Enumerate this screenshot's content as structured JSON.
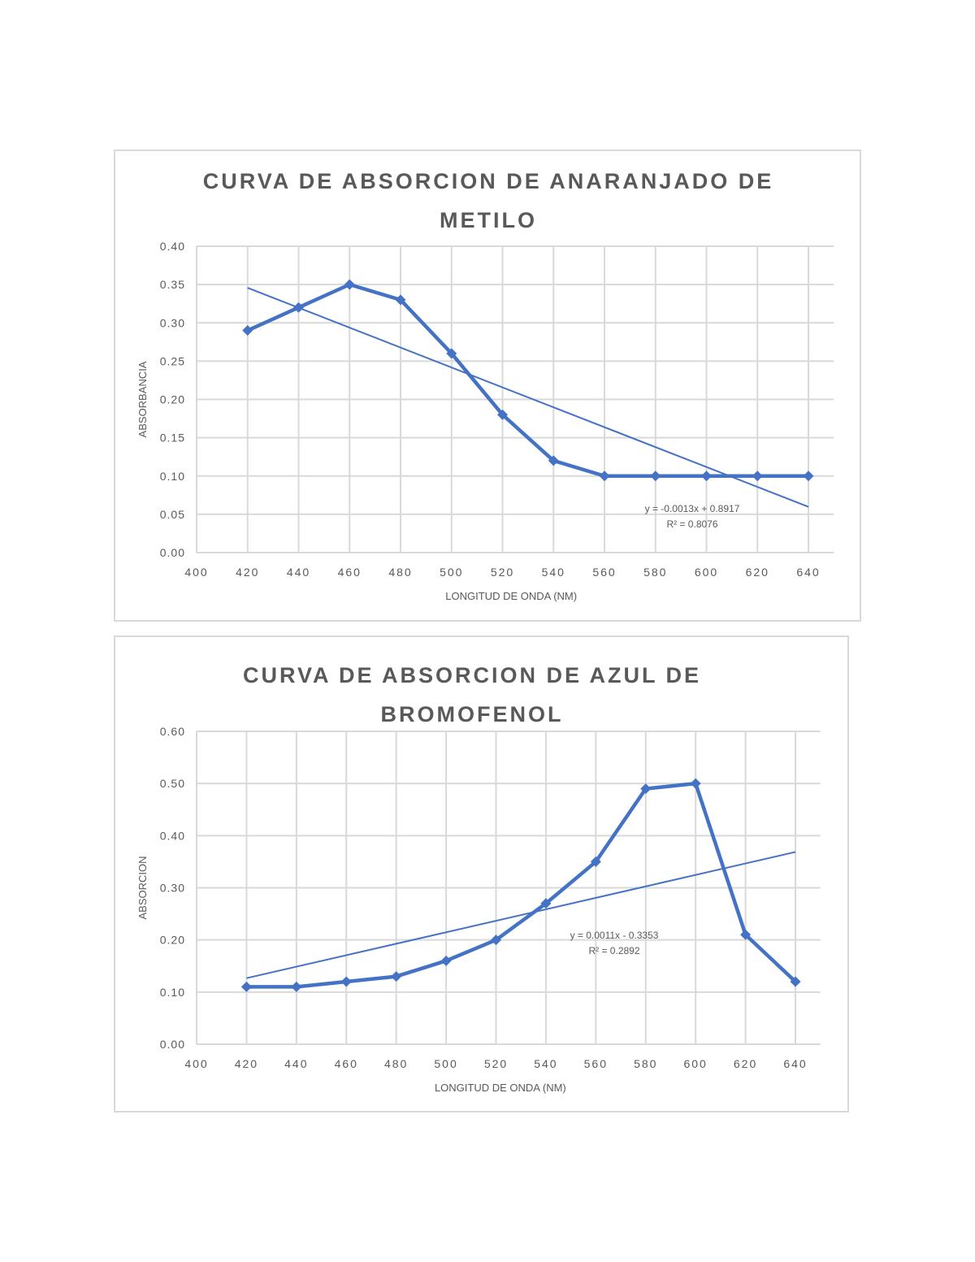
{
  "colors": {
    "series": "#4472c4",
    "grid": "#d9d9d9",
    "text": "#595959",
    "border": "#d9d9d9"
  },
  "chart_data": [
    {
      "type": "line",
      "title": "CURVA DE ABSORCION DE ANARANJADO DE METILO",
      "title_lines": [
        "CURVA DE ABSORCION DE ANARANJADO DE",
        "METILO"
      ],
      "xlabel": "LONGITUD DE ONDA (NM)",
      "ylabel": "ABSORBANCIA",
      "xlim": [
        400,
        650
      ],
      "ylim": [
        0,
        0.4
      ],
      "x_ticks": [
        "400",
        "420",
        "440",
        "460",
        "480",
        "500",
        "520",
        "540",
        "560",
        "580",
        "600",
        "620",
        "640"
      ],
      "y_ticks": [
        "0.00",
        "0.05",
        "0.10",
        "0.15",
        "0.20",
        "0.25",
        "0.30",
        "0.35",
        "0.40"
      ],
      "grid": true,
      "legend": "none",
      "x": [
        420,
        440,
        460,
        480,
        500,
        520,
        540,
        560,
        580,
        600,
        620,
        640
      ],
      "series": [
        {
          "name": "Absorbancia",
          "values": [
            0.29,
            0.32,
            0.35,
            0.33,
            0.26,
            0.18,
            0.12,
            0.1,
            0.1,
            0.1,
            0.1,
            0.1
          ]
        }
      ],
      "trendline": {
        "type": "linear",
        "slope": -0.0013,
        "intercept": 0.8917,
        "equation": "y = -0.0013x + 0.8917",
        "r2": "R² = 0.8076",
        "x_range": [
          420,
          640
        ]
      }
    },
    {
      "type": "line",
      "title": "CURVA DE ABSORCION DE AZUL DE BROMOFENOL",
      "title_lines": [
        "CURVA DE ABSORCION DE AZUL DE",
        "BROMOFENOL"
      ],
      "xlabel": "LONGITUD DE ONDA (NM)",
      "ylabel": "ABSORCION",
      "xlim": [
        400,
        650
      ],
      "ylim": [
        0,
        0.6
      ],
      "x_ticks": [
        "400",
        "420",
        "440",
        "460",
        "480",
        "500",
        "520",
        "540",
        "560",
        "580",
        "600",
        "620",
        "640"
      ],
      "y_ticks": [
        "0.00",
        "0.10",
        "0.20",
        "0.30",
        "0.40",
        "0.50",
        "0.60"
      ],
      "grid": true,
      "legend": "none",
      "x": [
        420,
        440,
        460,
        480,
        500,
        520,
        540,
        560,
        580,
        600,
        620,
        640
      ],
      "series": [
        {
          "name": "Absorcion",
          "values": [
            0.11,
            0.11,
            0.12,
            0.13,
            0.16,
            0.2,
            0.27,
            0.35,
            0.49,
            0.5,
            0.21,
            0.12
          ]
        }
      ],
      "trendline": {
        "type": "linear",
        "slope": 0.0011,
        "intercept": -0.3353,
        "equation": "y = 0.0011x - 0.3353",
        "r2": "R² = 0.2892",
        "x_range": [
          420,
          640
        ]
      }
    }
  ]
}
